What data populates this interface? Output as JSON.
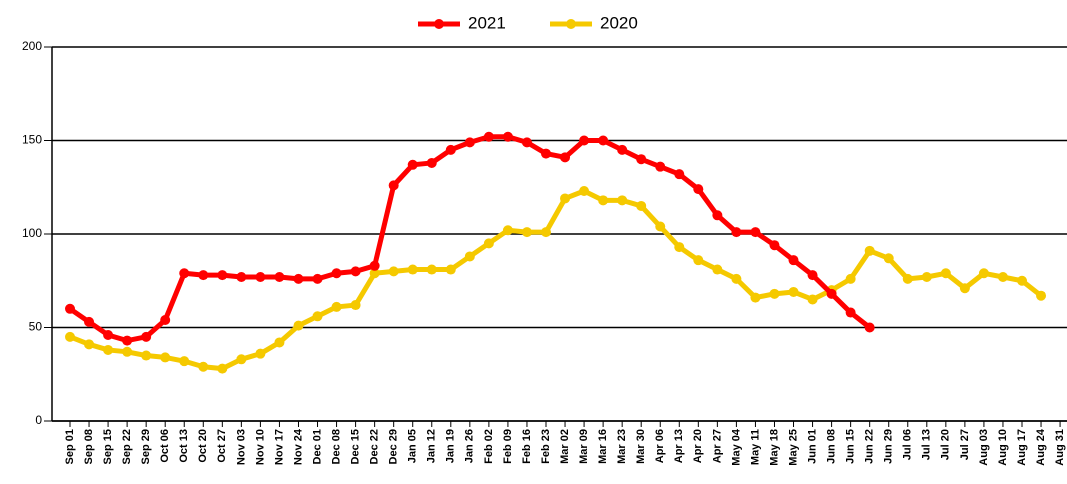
{
  "chart_data": {
    "type": "line",
    "categories": [
      "Sep 01",
      "Sep 08",
      "Sep 15",
      "Sep 22",
      "Sep 29",
      "Oct 06",
      "Oct 13",
      "Oct 20",
      "Oct 27",
      "Nov 03",
      "Nov 10",
      "Nov 17",
      "Nov 24",
      "Dec 01",
      "Dec 08",
      "Dec 15",
      "Dec 22",
      "Dec 29",
      "Jan 05",
      "Jan 12",
      "Jan 19",
      "Jan 26",
      "Feb 02",
      "Feb 09",
      "Feb 16",
      "Feb 23",
      "Mar 02",
      "Mar 09",
      "Mar 16",
      "Mar 23",
      "Mar 30",
      "Apr 06",
      "Apr 13",
      "Apr 20",
      "Apr 27",
      "May 04",
      "May 11",
      "May 18",
      "May 25",
      "Jun 01",
      "Jun 08",
      "Jun 15",
      "Jun 22",
      "Jun 29",
      "Jul 06",
      "Jul 13",
      "Jul 20",
      "Jul 27",
      "Aug 03",
      "Aug 10",
      "Aug 17",
      "Aug 24",
      "Aug 31"
    ],
    "series": [
      {
        "name": "2021",
        "color": "#ff0000",
        "values": [
          60,
          53,
          46,
          43,
          45,
          54,
          79,
          78,
          78,
          77,
          77,
          77,
          76,
          76,
          79,
          80,
          83,
          126,
          137,
          138,
          145,
          149,
          152,
          152,
          149,
          143,
          141,
          150,
          150,
          145,
          140,
          136,
          132,
          124,
          110,
          101,
          101,
          94,
          86,
          78,
          68,
          58,
          50,
          null,
          null,
          null,
          null,
          null,
          null,
          null,
          null,
          null,
          null
        ]
      },
      {
        "name": "2020",
        "color": "#f5c900",
        "values": [
          45,
          41,
          38,
          37,
          35,
          34,
          32,
          29,
          28,
          33,
          36,
          42,
          51,
          56,
          61,
          62,
          79,
          80,
          81,
          81,
          81,
          88,
          95,
          102,
          101,
          101,
          119,
          123,
          118,
          118,
          115,
          104,
          93,
          86,
          81,
          76,
          66,
          68,
          69,
          65,
          70,
          76,
          91,
          87,
          76,
          77,
          79,
          71,
          79,
          77,
          75,
          67,
          null
        ]
      }
    ],
    "ylim": [
      0,
      200
    ],
    "yticks": [
      0,
      50,
      100,
      150,
      200
    ],
    "grid": true,
    "legend": "top"
  }
}
